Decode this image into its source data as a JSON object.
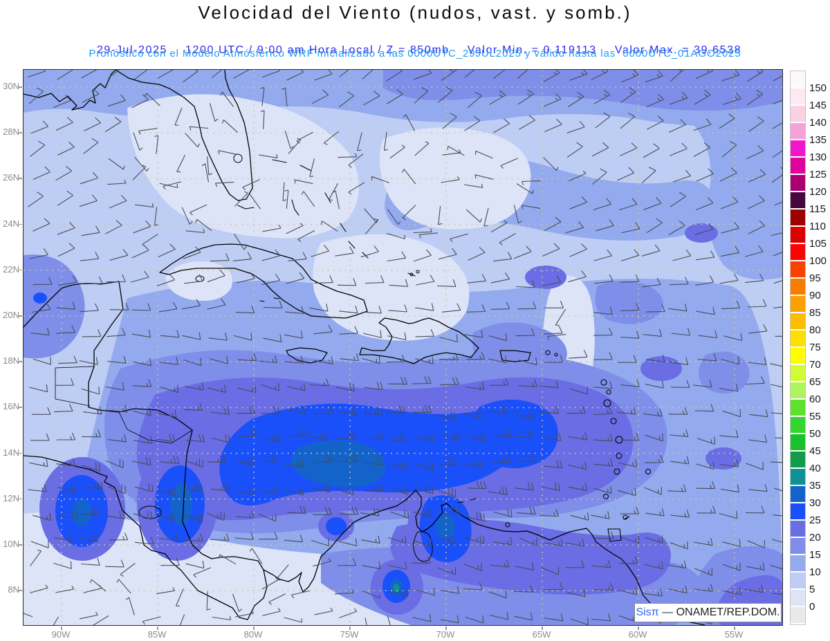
{
  "title": "Velocidad del Viento (nudos, vast. y somb.)",
  "subtitle": {
    "date": "29-Jul-2025",
    "time_level": "1200 UTC / 9:00 am Hora Local / Z = 850mb",
    "min": "Valor Min. = 0.119113",
    "max": "Valor Max. = 39.6538",
    "forecast": "Pronóstico con el Modelo Atmósferico WRF inicializado a las 0000UTC_29JUL2025 y válido hasta las  0000UTC_01AGO2025"
  },
  "axes": {
    "lat_labels": [
      "30N",
      "28N",
      "26N",
      "24N",
      "22N",
      "20N",
      "18N",
      "16N",
      "14N",
      "12N",
      "10N",
      "8N"
    ],
    "lon_labels": [
      "90W",
      "85W",
      "80W",
      "75W",
      "70W",
      "65W",
      "60W",
      "55W"
    ]
  },
  "colorbar": {
    "units": "nudos",
    "tick_labels": [
      "150",
      "145",
      "140",
      "135",
      "130",
      "125",
      "120",
      "115",
      "110",
      "105",
      "100",
      "95",
      "90",
      "85",
      "80",
      "75",
      "70",
      "65",
      "60",
      "55",
      "50",
      "45",
      "40",
      "35",
      "30",
      "25",
      "20",
      "15",
      "10",
      "5",
      "0"
    ],
    "colors_top_to_bottom": [
      "#FEF8FB",
      "#FCE9F2",
      "#FAD0E5",
      "#F5A3D7",
      "#EF17C9",
      "#E2009F",
      "#AB0070",
      "#47063E",
      "#9D0000",
      "#DC0000",
      "#FA0300",
      "#FA4200",
      "#FB7B00",
      "#FC9F00",
      "#FDBE00",
      "#FEDF00",
      "#FEFE00",
      "#D1FB35",
      "#ADF55F",
      "#5FDF2E",
      "#32D62E",
      "#18C22B",
      "#129B49",
      "#0E9295",
      "#1463CB",
      "#1A50FA",
      "#6A6DE3",
      "#7E8EE9",
      "#93AAEE",
      "#BECDF4",
      "#DDE4F8",
      "#E9E9E9"
    ]
  },
  "watermark": {
    "brand": "Sisπ",
    "text": " — ONAMET/REP.DOM."
  },
  "colors": {
    "title_text": "#0a0a0a",
    "subtitle_blue": "#2a2af0",
    "forecast_cyan": "#1f9bf2",
    "axis_label": "#8a8a8a",
    "grid_dot": "#cfc7a2",
    "wind_barb": "#474c55",
    "coastline": "#000000",
    "map_border": "#2b2b2b",
    "watermark_brand": "#2f66f5",
    "watermark_text": "#222222"
  }
}
